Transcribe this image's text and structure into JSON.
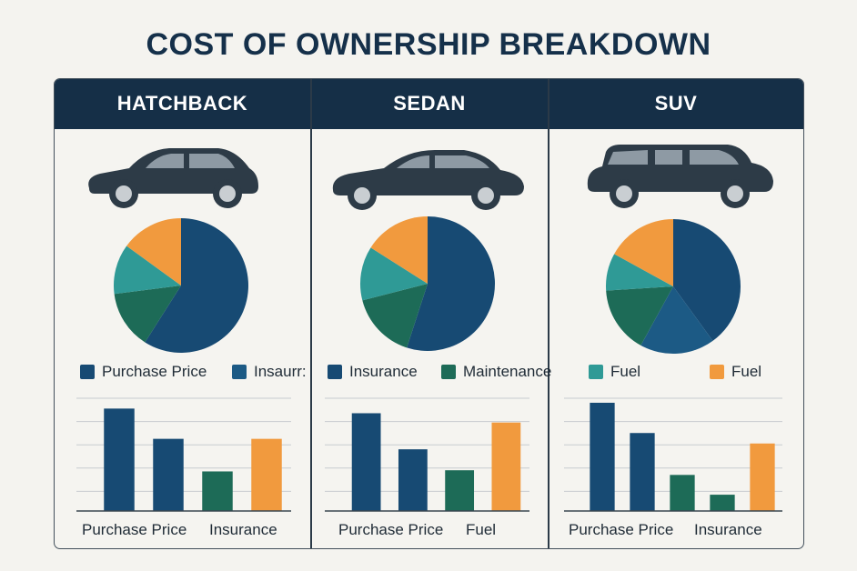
{
  "title": "COST OF OWNERSHIP BREAKDOWN",
  "colors": {
    "purchase_price": "#174a73",
    "insurance": "#1c5a85",
    "maintenance": "#1d6b57",
    "fuel_teal": "#2f9a96",
    "fuel_orange": "#f19a3e",
    "header_bg": "#152f47",
    "car_body": "#2d3b47"
  },
  "legend": [
    {
      "label": "Purchase Price",
      "color": "#174a73",
      "icon": "square-swatch"
    },
    {
      "label": "Insaurr:",
      "color": "#1c5a85",
      "icon": "square-swatch"
    },
    {
      "label": "Insurance",
      "color": "#174a73",
      "icon": "square-swatch"
    },
    {
      "label": "Maintenance",
      "color": "#1d6b57",
      "icon": "square-swatch"
    },
    {
      "label": "Fuel",
      "color": "#2f9a96",
      "icon": "square-swatch"
    },
    {
      "label": "Fuel",
      "color": "#f19a3e",
      "icon": "square-swatch"
    }
  ],
  "panels": [
    {
      "header": "HATCHBACK",
      "car_icon": "hatchback-car-icon",
      "category_labels": [
        "Purchase Price",
        "Insurance"
      ]
    },
    {
      "header": "SEDAN",
      "car_icon": "sedan-car-icon",
      "category_labels": [
        "Purchase Price",
        "Fuel"
      ]
    },
    {
      "header": "SUV",
      "car_icon": "suv-car-icon",
      "category_labels": [
        "Purchase Price",
        "Insurance"
      ]
    }
  ],
  "chart_data": [
    {
      "type": "pie",
      "panel": "HATCHBACK",
      "slices": [
        {
          "color": "#174a73",
          "value": 59
        },
        {
          "color": "#1d6b57",
          "value": 14
        },
        {
          "color": "#2f9a96",
          "value": 12
        },
        {
          "color": "#f19a3e",
          "value": 15
        }
      ]
    },
    {
      "type": "bar",
      "panel": "HATCHBACK",
      "categories": [
        "Purchase Price",
        "Insurance"
      ],
      "bars": [
        {
          "color": "#174a73",
          "value": 88
        },
        {
          "color": "#174a73",
          "value": 62
        },
        {
          "color": "#1d6b57",
          "value": 34
        },
        {
          "color": "#f19a3e",
          "value": 62
        }
      ],
      "ylim": [
        0,
        100
      ],
      "grid": true
    },
    {
      "type": "pie",
      "panel": "SEDAN",
      "slices": [
        {
          "color": "#174a73",
          "value": 55
        },
        {
          "color": "#1d6b57",
          "value": 16
        },
        {
          "color": "#2f9a96",
          "value": 13
        },
        {
          "color": "#f19a3e",
          "value": 16
        }
      ]
    },
    {
      "type": "bar",
      "panel": "SEDAN",
      "categories": [
        "Purchase Price",
        "Fuel"
      ],
      "bars": [
        {
          "color": "#174a73",
          "value": 84
        },
        {
          "color": "#174a73",
          "value": 53
        },
        {
          "color": "#1d6b57",
          "value": 35
        },
        {
          "color": "#f19a3e",
          "value": 76
        }
      ],
      "ylim": [
        0,
        100
      ],
      "grid": true
    },
    {
      "type": "pie",
      "panel": "SUV",
      "slices": [
        {
          "color": "#174a73",
          "value": 40
        },
        {
          "color": "#1c5a85",
          "value": 18
        },
        {
          "color": "#1d6b57",
          "value": 16
        },
        {
          "color": "#2f9a96",
          "value": 9
        },
        {
          "color": "#f19a3e",
          "value": 17
        }
      ]
    },
    {
      "type": "bar",
      "panel": "SUV",
      "categories": [
        "Purchase Price",
        "Insurance"
      ],
      "bars": [
        {
          "color": "#174a73",
          "value": 93
        },
        {
          "color": "#174a73",
          "value": 67
        },
        {
          "color": "#1d6b57",
          "value": 31
        },
        {
          "color": "#1d6b57",
          "value": 14
        },
        {
          "color": "#f19a3e",
          "value": 58
        }
      ],
      "ylim": [
        0,
        100
      ],
      "grid": true
    }
  ]
}
